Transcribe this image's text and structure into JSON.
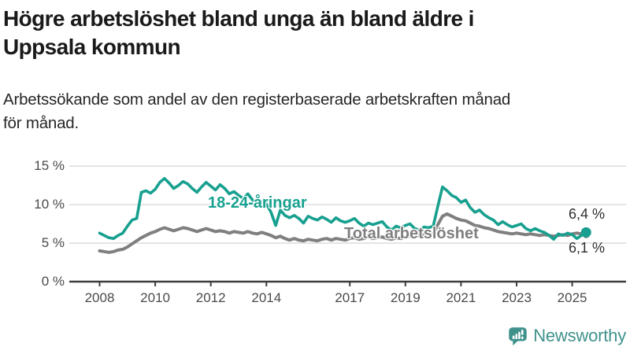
{
  "chart_data": {
    "type": "line",
    "title": "Högre arbetslöshet bland unga än bland äldre i\nUppsala kommun",
    "subtitle": "Arbetssökande som andel av den registerbaserade arbetskraften månad\nför månad.",
    "grid": "horizontal",
    "legend_position": "inline-labels-on-lines",
    "x_axis": {
      "ticks": [
        2008,
        2010,
        2012,
        2014,
        2017,
        2019,
        2021,
        2023,
        2025
      ],
      "tick_labels": [
        "2008",
        "2010",
        "2012",
        "2014",
        "2017",
        "2019",
        "2021",
        "2023",
        "2025"
      ],
      "range": [
        2008,
        2025.6
      ]
    },
    "y_axis": {
      "ticks": [
        0,
        5,
        10,
        15
      ],
      "tick_labels": [
        "0 %",
        "5 %",
        "10 %",
        "15 %"
      ],
      "range": [
        0,
        15
      ],
      "unit": "%"
    },
    "x_start": 2008.0,
    "x_step_years": 0.166667,
    "series": [
      {
        "name": "18-24-åringar",
        "color": "#17a08f",
        "end_value": 6.4,
        "end_label": "6,4 %",
        "end_dot": true,
        "values": [
          6.3,
          6.0,
          5.7,
          5.6,
          6.0,
          6.3,
          7.2,
          8.0,
          8.2,
          11.6,
          11.8,
          11.5,
          12.0,
          12.9,
          13.4,
          12.8,
          12.1,
          12.5,
          13.0,
          12.7,
          12.1,
          11.6,
          12.3,
          12.9,
          12.4,
          11.9,
          12.6,
          12.1,
          11.4,
          11.7,
          11.2,
          10.8,
          11.4,
          10.6,
          10.1,
          10.4,
          10.1,
          9.0,
          7.3,
          9.3,
          8.6,
          8.3,
          8.6,
          8.2,
          7.6,
          8.5,
          8.2,
          8.0,
          8.4,
          8.1,
          7.7,
          8.3,
          7.9,
          7.7,
          7.9,
          8.2,
          7.6,
          7.2,
          7.6,
          7.4,
          7.6,
          7.8,
          7.1,
          6.7,
          7.2,
          7.0,
          7.3,
          7.5,
          6.9,
          6.7,
          7.1,
          7.0,
          7.2,
          9.8,
          12.3,
          11.8,
          11.2,
          10.9,
          10.3,
          10.6,
          9.6,
          9.0,
          9.3,
          8.7,
          8.3,
          8.0,
          7.4,
          7.8,
          7.4,
          7.1,
          7.3,
          7.5,
          6.9,
          6.6,
          6.9,
          6.6,
          6.4,
          6.0,
          5.5,
          6.2,
          6.0,
          6.3,
          6.1,
          5.6,
          6.0,
          6.4
        ]
      },
      {
        "name": "Total arbetslöshet",
        "color": "#7f7f7f",
        "end_value": 6.1,
        "end_label": "6,1 %",
        "end_dot": true,
        "values": [
          4.0,
          3.9,
          3.8,
          3.9,
          4.1,
          4.2,
          4.5,
          4.9,
          5.3,
          5.7,
          6.0,
          6.3,
          6.5,
          6.8,
          7.0,
          6.8,
          6.6,
          6.8,
          7.0,
          6.9,
          6.7,
          6.5,
          6.7,
          6.9,
          6.7,
          6.5,
          6.6,
          6.5,
          6.3,
          6.5,
          6.4,
          6.3,
          6.5,
          6.3,
          6.2,
          6.4,
          6.2,
          6.0,
          5.7,
          5.9,
          5.6,
          5.4,
          5.6,
          5.4,
          5.3,
          5.5,
          5.4,
          5.3,
          5.5,
          5.6,
          5.4,
          5.6,
          5.5,
          5.4,
          5.6,
          5.7,
          5.5,
          5.6,
          5.8,
          5.6,
          5.7,
          5.8,
          5.6,
          5.5,
          5.7,
          5.6,
          5.8,
          5.9,
          5.8,
          6.0,
          6.1,
          6.0,
          6.2,
          7.4,
          8.5,
          8.8,
          8.5,
          8.2,
          8.0,
          7.9,
          7.6,
          7.3,
          7.2,
          7.0,
          6.9,
          6.7,
          6.5,
          6.4,
          6.3,
          6.2,
          6.3,
          6.2,
          6.1,
          6.2,
          6.1,
          6.0,
          6.1,
          6.0,
          5.9,
          6.0,
          6.1,
          6.0,
          6.2,
          6.3,
          6.2,
          6.1
        ]
      }
    ],
    "colors": {
      "grid": "#dedede",
      "axis": "#3d3d3d",
      "tick_text": "#4a4a4a"
    }
  },
  "branding": {
    "logo_text": "Newsworthy",
    "logo_icon": "speech-bubble-bar-chart-icon",
    "logo_color": "#3f928c"
  }
}
